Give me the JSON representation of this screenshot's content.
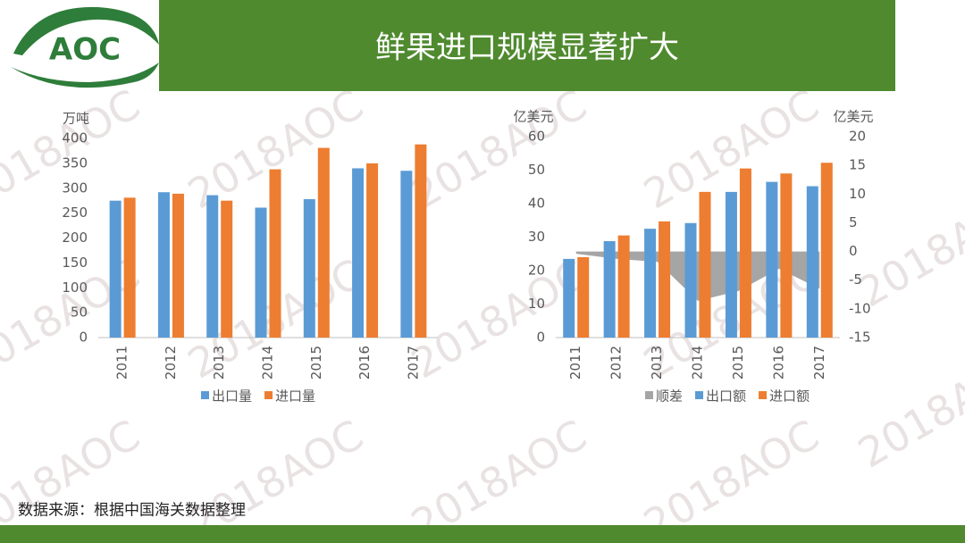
{
  "header": {
    "title": "鲜果进口规模显著扩大",
    "logo": "AOC"
  },
  "watermark": "2018AOC",
  "source": "数据来源：根据中国海关数据整理",
  "chart_data": [
    {
      "type": "bar",
      "y_label": "万吨",
      "categories": [
        "2011",
        "2012",
        "2013",
        "2014",
        "2015",
        "2016",
        "2017"
      ],
      "series": [
        {
          "name": "出口量",
          "color": "#5b9bd5",
          "values": [
            275,
            292,
            286,
            261,
            278,
            340,
            335
          ]
        },
        {
          "name": "进口量",
          "color": "#ed7d31",
          "values": [
            281,
            289,
            275,
            338,
            381,
            350,
            388
          ]
        }
      ],
      "ylim": [
        0,
        400
      ],
      "yticks": [
        0,
        50,
        100,
        150,
        200,
        250,
        300,
        350,
        400
      ]
    },
    {
      "type": "bar",
      "y_label": "亿美元",
      "y2_label": "亿美元",
      "categories": [
        "2011",
        "2012",
        "2013",
        "2014",
        "2015",
        "2016",
        "2017"
      ],
      "series": [
        {
          "name": "顺差",
          "color": "#a5a5a5",
          "type": "area",
          "axis": "y2",
          "values": [
            -0.4,
            -1.3,
            -1.8,
            -8.6,
            -6.9,
            -3.0,
            -6.5
          ]
        },
        {
          "name": "出口额",
          "color": "#5b9bd5",
          "values": [
            23.5,
            28.8,
            32.5,
            34.2,
            43.5,
            46.5,
            45.2
          ]
        },
        {
          "name": "进口额",
          "color": "#ed7d31",
          "values": [
            24,
            30.5,
            34.7,
            43.5,
            50.5,
            49,
            52.2
          ]
        }
      ],
      "ylim": [
        0,
        60
      ],
      "yticks": [
        0,
        10,
        20,
        30,
        40,
        50,
        60
      ],
      "y2lim": [
        -15,
        20
      ],
      "y2ticks": [
        -15,
        -10,
        -5,
        0,
        5,
        10,
        15,
        20
      ]
    }
  ]
}
